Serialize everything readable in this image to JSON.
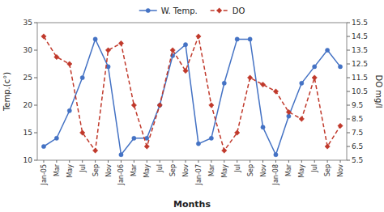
{
  "chart_data": {
    "type": "line",
    "xlabel": "Months",
    "ylabel": "Temp.(c°)",
    "y2label": "DO  mg/l",
    "categories": [
      "Jan-05",
      "Mar",
      "May",
      "Jul",
      "Sep",
      "Nov",
      "Jan-06",
      "Mar",
      "May",
      "Jul",
      "Sep",
      "Nov",
      "Jan-07",
      "Mar",
      "May",
      "Jul",
      "Sep",
      "Nov",
      "Jan-08",
      "Mar",
      "May",
      "Jul",
      "Sep",
      "Nov"
    ],
    "series": [
      {
        "name": "W. Temp.",
        "color": "#4472C4",
        "marker": "circle",
        "line_style": "solid",
        "values": [
          12.5,
          14,
          19,
          25,
          32,
          27,
          11,
          14,
          14,
          20,
          29,
          31,
          13,
          14,
          24,
          32,
          32,
          16,
          11,
          18,
          24,
          27,
          30,
          27
        ]
      },
      {
        "name": "DO",
        "color": "#C0392B",
        "marker": "diamond",
        "line_style": "dashed",
        "axis": "y2",
        "values": [
          14.5,
          13.0,
          12.5,
          7.5,
          6.2,
          13.5,
          14.0,
          9.5,
          6.5,
          9.5,
          13.5,
          12.0,
          14.5,
          9.5,
          6.2,
          7.5,
          11.5,
          11.0,
          10.5,
          9.0,
          8.5,
          11.5,
          6.5,
          8.0
        ]
      }
    ],
    "ylim": [
      10,
      35
    ],
    "yticks": [
      10,
      15,
      20,
      25,
      30,
      35
    ],
    "y2lim": [
      5.5,
      15.5
    ],
    "y2ticks": [
      5.5,
      6.5,
      7.5,
      8.5,
      9.5,
      10.5,
      11.5,
      12.5,
      13.5,
      14.5,
      15.5
    ],
    "grid": false,
    "legend": "top"
  }
}
